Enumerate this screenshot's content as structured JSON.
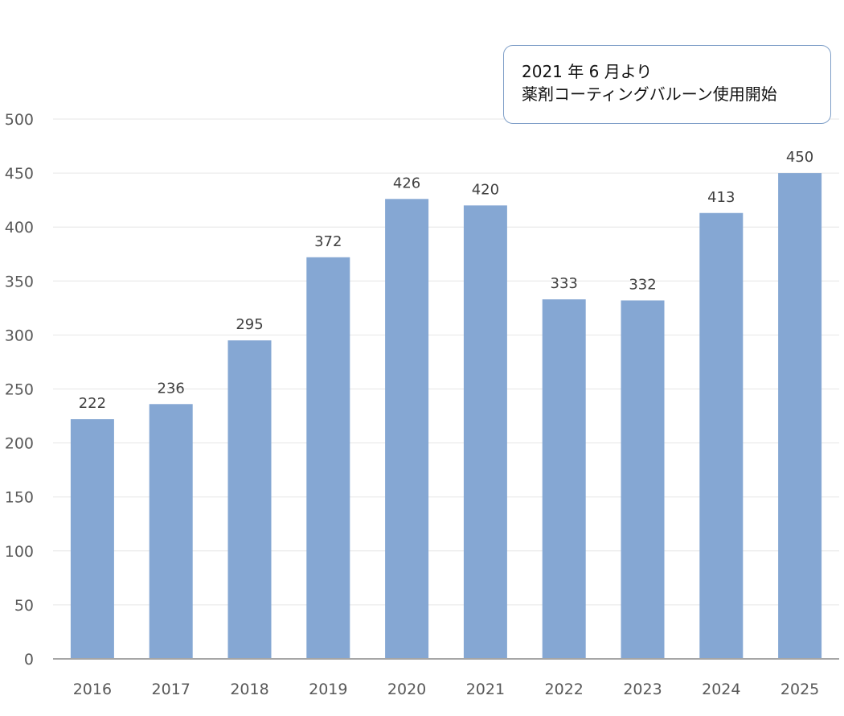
{
  "chart_data": {
    "type": "bar",
    "title": "",
    "xlabel": "",
    "ylabel": "",
    "categories": [
      "2016",
      "2017",
      "2018",
      "2019",
      "2020",
      "2021",
      "2022",
      "2023",
      "2024",
      "2025"
    ],
    "values": [
      222,
      236,
      295,
      372,
      426,
      420,
      333,
      332,
      413,
      450
    ],
    "ylim": [
      0,
      500
    ],
    "yticks": [
      "0",
      "50",
      "100",
      "150",
      "200",
      "250",
      "300",
      "350",
      "400",
      "450",
      "500"
    ],
    "grid": true,
    "legend": "none",
    "data_labels": true,
    "bar_color": "#85a7d3",
    "annotation": {
      "line1": "2021 年 6 月より",
      "line2": "薬剤コーティングバルーン使用開始"
    }
  }
}
